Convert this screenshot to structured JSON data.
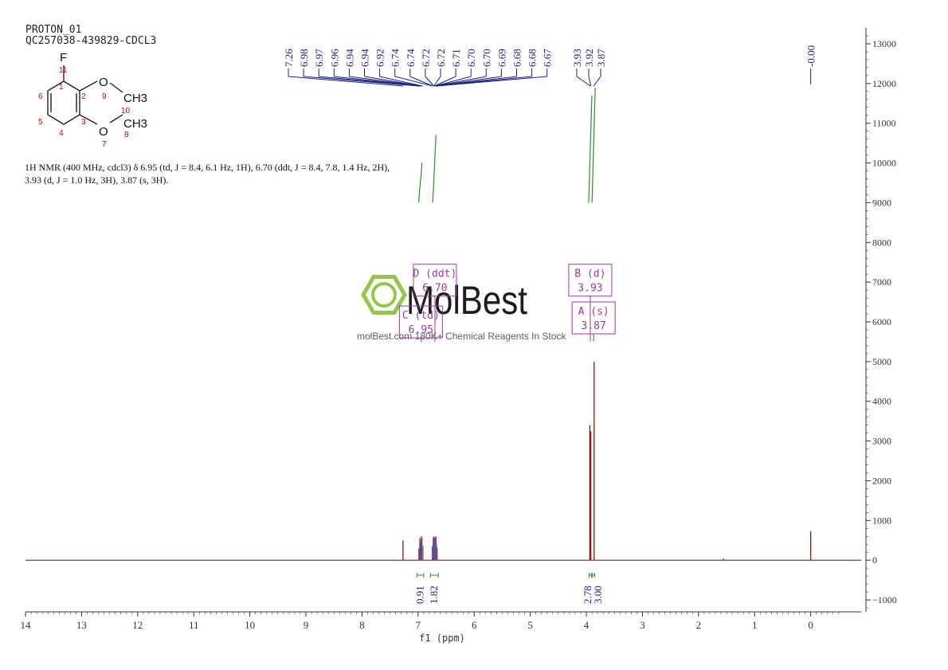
{
  "header": {
    "experiment": "PROTON_01",
    "sample": "QC257038-439829-CDCL3"
  },
  "nmr_summary": {
    "line1": "1H NMR (400 MHz, cdcl3) δ 6.95 (td, J = 8.4, 6.1 Hz, 1H), 6.70 (ddt, J = 8.4, 7.8, 1.4 Hz, 2H),",
    "line2": "3.93 (d, J = 1.0 Hz, 3H), 3.87 (s, 3H)."
  },
  "structure": {
    "atoms": [
      {
        "label": "F",
        "number": "11"
      },
      {
        "label": "O",
        "number": "9"
      },
      {
        "label": "CH3",
        "number": "10"
      },
      {
        "label": "O",
        "number": "7"
      },
      {
        "label": "CH3",
        "number": "8"
      }
    ],
    "ring_numbers": [
      "1",
      "2",
      "3",
      "4",
      "5",
      "6"
    ]
  },
  "watermark": {
    "brand": "MolBest",
    "tagline": "molBest.com 180K+ Chemical Reagents In Stock",
    "color": "#8dc63f"
  },
  "colors": {
    "spectrum": "#8b1a1a",
    "peak_labels": "#1a237e",
    "integral": "#2e8b2e",
    "multiplet_box": "#9b3b9b",
    "axis": "#333333"
  },
  "chart_data": {
    "type": "line",
    "xlabel": "f1 (ppm)",
    "xlim": [
      14,
      -0.9
    ],
    "ylim": [
      -1300,
      13400
    ],
    "x_ticks": [
      14,
      13,
      12,
      11,
      10,
      9,
      8,
      7,
      6,
      5,
      4,
      3,
      2,
      1,
      0
    ],
    "y_ticks": [
      -1000,
      0,
      1000,
      2000,
      3000,
      4000,
      5000,
      6000,
      7000,
      8000,
      9000,
      10000,
      11000,
      12000,
      13000
    ],
    "peaks": [
      {
        "ppm": 7.26,
        "height": 500
      },
      {
        "ppm": 6.98,
        "height": 300
      },
      {
        "ppm": 6.97,
        "height": 420
      },
      {
        "ppm": 6.96,
        "height": 560
      },
      {
        "ppm": 6.94,
        "height": 600
      },
      {
        "ppm": 6.94,
        "height": 540
      },
      {
        "ppm": 6.92,
        "height": 380
      },
      {
        "ppm": 6.74,
        "height": 360
      },
      {
        "ppm": 6.74,
        "height": 420
      },
      {
        "ppm": 6.72,
        "height": 560
      },
      {
        "ppm": 6.72,
        "height": 600
      },
      {
        "ppm": 6.71,
        "height": 520
      },
      {
        "ppm": 6.7,
        "height": 480
      },
      {
        "ppm": 6.7,
        "height": 540
      },
      {
        "ppm": 6.69,
        "height": 600
      },
      {
        "ppm": 6.68,
        "height": 560
      },
      {
        "ppm": 6.68,
        "height": 440
      },
      {
        "ppm": 6.67,
        "height": 320
      },
      {
        "ppm": 3.93,
        "height": 3400
      },
      {
        "ppm": 3.92,
        "height": 3250
      },
      {
        "ppm": 3.87,
        "height": 5000
      },
      {
        "ppm": 1.55,
        "height": 40
      },
      {
        "ppm": 0.0,
        "height": 730
      }
    ],
    "peak_label_groups": [
      {
        "labels": [
          "7.26",
          "6.98",
          "6.97",
          "6.96",
          "6.94",
          "6.94",
          "6.92",
          "6.74",
          "6.74",
          "6.72",
          "6.72",
          "6.71",
          "6.70",
          "6.70",
          "6.69",
          "6.68",
          "6.68",
          "6.67"
        ]
      },
      {
        "labels": [
          "3.93",
          "3.92",
          "3.87"
        ]
      },
      {
        "labels": [
          "-0.00"
        ]
      }
    ],
    "integrals": [
      {
        "from": 7.02,
        "to": 6.9,
        "value": "0.91",
        "curve_top": 9000,
        "curve_bottom": 10000
      },
      {
        "from": 6.78,
        "to": 6.64,
        "value": "1.82",
        "curve_top": 9000,
        "curve_bottom": 10700
      },
      {
        "from": 3.95,
        "to": 3.91,
        "value": "2.78",
        "curve_top": 9000,
        "curve_bottom": 11700
      },
      {
        "from": 3.89,
        "to": 3.85,
        "value": "3.00",
        "curve_top": 9000,
        "curve_bottom": 11900
      }
    ],
    "multiplets": [
      {
        "letter": "D (ddt)",
        "shift": "6.70",
        "ppm": 6.7,
        "y_top": 7450
      },
      {
        "letter": "C (td)",
        "shift": "6.95",
        "ppm": 6.95,
        "y_top": 6400
      },
      {
        "letter": "B (d)",
        "shift": "3.93",
        "ppm": 3.93,
        "y_top": 7450
      },
      {
        "letter": "A (s)",
        "shift": "3.87",
        "ppm": 3.87,
        "y_top": 6500
      }
    ]
  }
}
